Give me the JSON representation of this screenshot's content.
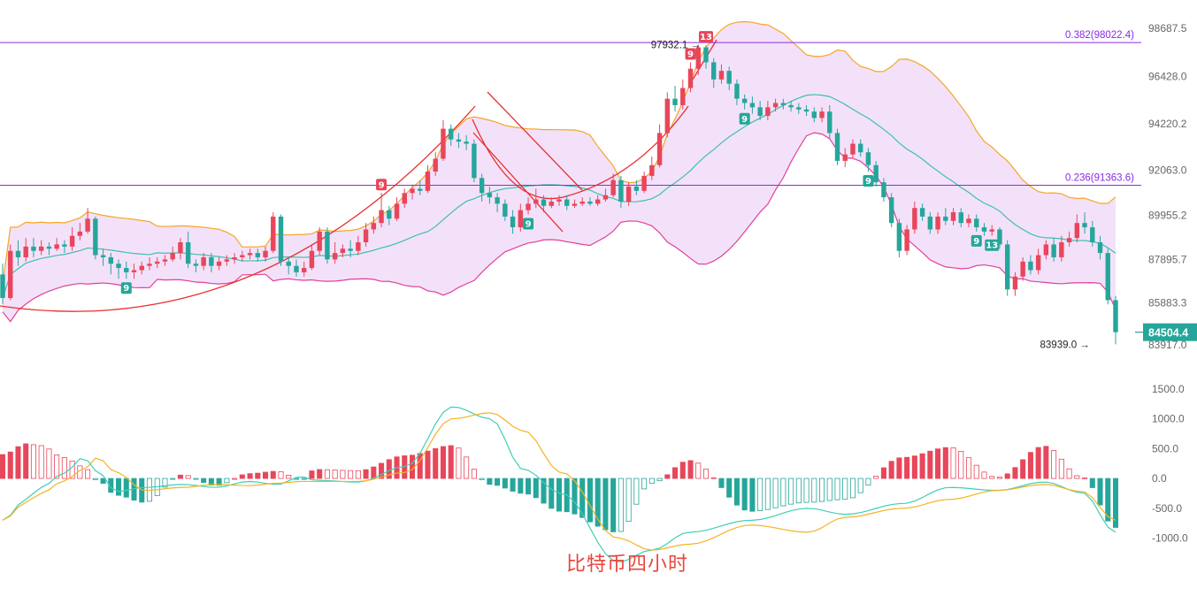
{
  "caption": "比特币四小时",
  "chart_data": [
    {
      "type": "candlestick",
      "title": "",
      "y_axis_ticks": [
        "98687.5",
        "96428.0",
        "94220.2",
        "92063.0",
        "89955.2",
        "87895.7",
        "85883.3",
        "83917.0"
      ],
      "ylim": [
        83500,
        99100
      ],
      "fib_levels": [
        {
          "label": "0.382(98022.4)",
          "value": 98022.4,
          "color": "#8a2be2"
        },
        {
          "label": "0.236(91363.6)",
          "value": 91363.6,
          "color": "#8a2be2"
        }
      ],
      "last_price": "84504.4",
      "last_price_value": 84504.4,
      "high_mark": {
        "label": "97932.1 →",
        "value": 97932.1,
        "index": 91
      },
      "low_mark": {
        "label": "83939.0 →",
        "value": 83939.0,
        "index": 141
      },
      "indicators": [
        "bollinger_bands",
        "moving_average",
        "td_sequential"
      ],
      "td_counts": [
        {
          "label": "9",
          "index": 16,
          "position": "below",
          "color": "#26a69a"
        },
        {
          "label": "9",
          "index": 49,
          "position": "above",
          "color": "#e8465a"
        },
        {
          "label": "9",
          "index": 68,
          "position": "below",
          "color": "#26a69a"
        },
        {
          "label": "9",
          "index": 89,
          "position": "above",
          "color": "#e8465a"
        },
        {
          "label": "13",
          "index": 91,
          "position": "above",
          "color": "#e8465a"
        },
        {
          "label": "9",
          "index": 96,
          "position": "below",
          "color": "#26a69a"
        },
        {
          "label": "9",
          "index": 112,
          "position": "below",
          "color": "#26a69a"
        },
        {
          "label": "9",
          "index": 126,
          "position": "below",
          "color": "#26a69a"
        },
        {
          "label": "13",
          "index": 128,
          "position": "below",
          "color": "#26a69a"
        }
      ],
      "candles": [
        [
          87200,
          86100,
          87700,
          85800
        ],
        [
          86100,
          88300,
          88600,
          86000
        ],
        [
          88300,
          88000,
          88800,
          87600
        ],
        [
          88000,
          88500,
          88900,
          87800
        ],
        [
          88500,
          88300,
          88900,
          88000
        ],
        [
          88300,
          88500,
          88800,
          88100
        ],
        [
          88500,
          88400,
          88700,
          88100
        ],
        [
          88400,
          88600,
          88900,
          88300
        ],
        [
          88600,
          88500,
          88800,
          88200
        ],
        [
          88500,
          89000,
          89400,
          88300
        ],
        [
          89000,
          89200,
          89600,
          88800
        ],
        [
          89200,
          89800,
          90300,
          89100
        ],
        [
          89800,
          88100,
          89900,
          87900
        ],
        [
          88100,
          88000,
          88400,
          87600
        ],
        [
          88000,
          87700,
          88200,
          87200
        ],
        [
          87700,
          87500,
          87900,
          87000
        ],
        [
          87500,
          87300,
          87800,
          87000
        ],
        [
          87300,
          87400,
          87700,
          87000
        ],
        [
          87400,
          87600,
          87800,
          87200
        ],
        [
          87600,
          87700,
          88000,
          87400
        ],
        [
          87700,
          87800,
          88000,
          87500
        ],
        [
          87800,
          87900,
          88100,
          87600
        ],
        [
          87900,
          88200,
          88500,
          87800
        ],
        [
          88200,
          88700,
          88900,
          87900
        ],
        [
          88700,
          87700,
          89200,
          87500
        ],
        [
          87700,
          87600,
          87900,
          87300
        ],
        [
          87600,
          88000,
          88200,
          87400
        ],
        [
          88000,
          87600,
          88200,
          87300
        ],
        [
          87600,
          87800,
          88000,
          87400
        ],
        [
          87800,
          87900,
          88100,
          87600
        ],
        [
          87900,
          88000,
          88200,
          87700
        ],
        [
          88000,
          88100,
          88300,
          87800
        ],
        [
          88100,
          88200,
          88400,
          87900
        ],
        [
          88200,
          88000,
          88400,
          87800
        ],
        [
          88000,
          88300,
          88500,
          87800
        ],
        [
          88300,
          89900,
          90100,
          88200
        ],
        [
          89900,
          87800,
          90000,
          87600
        ],
        [
          87800,
          87600,
          88000,
          87200
        ],
        [
          87600,
          87300,
          87900,
          87100
        ],
        [
          87300,
          87500,
          87800,
          87100
        ],
        [
          87500,
          88300,
          88600,
          87400
        ],
        [
          88300,
          89200,
          89400,
          88100
        ],
        [
          89200,
          87900,
          89400,
          87700
        ],
        [
          87900,
          88200,
          88700,
          87700
        ],
        [
          88200,
          88400,
          88600,
          88000
        ],
        [
          88400,
          88300,
          88800,
          88000
        ],
        [
          88300,
          88700,
          89000,
          88100
        ],
        [
          88700,
          89300,
          89600,
          88500
        ],
        [
          89300,
          89600,
          89900,
          89100
        ],
        [
          89600,
          90200,
          91000,
          89400
        ],
        [
          90200,
          89800,
          90400,
          89500
        ],
        [
          89800,
          90500,
          90800,
          89700
        ],
        [
          90500,
          91000,
          91200,
          90300
        ],
        [
          91000,
          91200,
          91400,
          90700
        ],
        [
          91200,
          91100,
          91600,
          90900
        ],
        [
          91100,
          92000,
          92300,
          91000
        ],
        [
          92000,
          92600,
          92900,
          91800
        ],
        [
          92600,
          94000,
          94400,
          92500
        ],
        [
          94000,
          93500,
          94200,
          93200
        ],
        [
          93500,
          93400,
          93800,
          93100
        ],
        [
          93400,
          93300,
          93700,
          93000
        ],
        [
          93300,
          91700,
          93500,
          91500
        ],
        [
          91700,
          91000,
          91900,
          90600
        ],
        [
          91000,
          90800,
          91300,
          90500
        ],
        [
          90800,
          90500,
          91000,
          90100
        ],
        [
          90500,
          89900,
          90700,
          89700
        ],
        [
          89900,
          89400,
          90200,
          89100
        ],
        [
          89400,
          90200,
          90500,
          89200
        ],
        [
          90200,
          90500,
          90800,
          90000
        ],
        [
          90500,
          90700,
          91200,
          90300
        ],
        [
          90700,
          90400,
          90900,
          90100
        ],
        [
          90400,
          90600,
          90800,
          90300
        ],
        [
          90600,
          90700,
          90900,
          90400
        ],
        [
          90700,
          90400,
          90900,
          90200
        ],
        [
          90400,
          90500,
          90700,
          90300
        ],
        [
          90500,
          90600,
          90800,
          90400
        ],
        [
          90600,
          90500,
          90800,
          90400
        ],
        [
          90500,
          90700,
          90900,
          90400
        ],
        [
          90700,
          90900,
          91200,
          90600
        ],
        [
          90900,
          91600,
          91900,
          90800
        ],
        [
          91600,
          90600,
          91800,
          90300
        ],
        [
          90600,
          91300,
          91500,
          90400
        ],
        [
          91300,
          91100,
          91600,
          90900
        ],
        [
          91100,
          91800,
          92000,
          91000
        ],
        [
          91800,
          92300,
          92700,
          91600
        ],
        [
          92300,
          93800,
          94200,
          92200
        ],
        [
          93800,
          95400,
          95700,
          93600
        ],
        [
          95400,
          95100,
          96000,
          94800
        ],
        [
          95100,
          95900,
          96300,
          94900
        ],
        [
          95900,
          96800,
          97100,
          95700
        ],
        [
          96800,
          97800,
          97932,
          96500
        ],
        [
          97800,
          97100,
          97900,
          96800
        ],
        [
          97100,
          96300,
          97300,
          95900
        ],
        [
          96300,
          96700,
          97000,
          96100
        ],
        [
          96700,
          96100,
          96900,
          95800
        ],
        [
          96100,
          95400,
          96300,
          95100
        ],
        [
          95400,
          95200,
          95600,
          94900
        ],
        [
          95200,
          95000,
          95500,
          94700
        ],
        [
          95000,
          94600,
          95300,
          94400
        ],
        [
          94600,
          95000,
          95300,
          94400
        ],
        [
          95000,
          95200,
          95400,
          94800
        ],
        [
          95200,
          95100,
          95400,
          94900
        ],
        [
          95100,
          95000,
          95300,
          94800
        ],
        [
          95000,
          94900,
          95200,
          94700
        ],
        [
          94900,
          94800,
          95100,
          94600
        ],
        [
          94800,
          94500,
          95000,
          94300
        ],
        [
          94500,
          94800,
          95000,
          94300
        ],
        [
          94800,
          93800,
          95100,
          93500
        ],
        [
          93800,
          92500,
          94000,
          92300
        ],
        [
          92500,
          92800,
          93100,
          92200
        ],
        [
          92800,
          93300,
          93500,
          92600
        ],
        [
          93300,
          92900,
          93500,
          92700
        ],
        [
          92900,
          92300,
          93100,
          92000
        ],
        [
          92300,
          91500,
          92500,
          91300
        ],
        [
          91500,
          90800,
          91700,
          90600
        ],
        [
          90800,
          89600,
          91000,
          89400
        ],
        [
          89600,
          88300,
          89800,
          88000
        ],
        [
          88300,
          89300,
          89500,
          88100
        ],
        [
          89300,
          90300,
          90600,
          89100
        ],
        [
          90300,
          89900,
          90500,
          89700
        ],
        [
          89900,
          89300,
          90100,
          89100
        ],
        [
          89300,
          89900,
          90100,
          89100
        ],
        [
          89900,
          89700,
          90300,
          89500
        ],
        [
          89700,
          90100,
          90300,
          89500
        ],
        [
          90100,
          89600,
          90300,
          89400
        ],
        [
          89600,
          89800,
          90000,
          89400
        ],
        [
          89800,
          89400,
          90000,
          89200
        ],
        [
          89400,
          89200,
          89600,
          89000
        ],
        [
          89200,
          89300,
          89500,
          89000
        ],
        [
          89300,
          88600,
          89400,
          88400
        ],
        [
          88600,
          86500,
          88800,
          86200
        ],
        [
          86500,
          87100,
          87300,
          86200
        ],
        [
          87100,
          87800,
          88000,
          86900
        ],
        [
          87800,
          87400,
          88100,
          87200
        ],
        [
          87400,
          88100,
          88400,
          87200
        ],
        [
          88100,
          88600,
          88800,
          87900
        ],
        [
          88600,
          88000,
          88900,
          87800
        ],
        [
          88000,
          88700,
          89000,
          87800
        ],
        [
          88700,
          88900,
          89200,
          88500
        ],
        [
          88900,
          89600,
          90000,
          88700
        ],
        [
          89600,
          89400,
          90100,
          89100
        ],
        [
          89400,
          88700,
          89700,
          88500
        ],
        [
          88700,
          88200,
          89000,
          87900
        ],
        [
          88200,
          86000,
          88400,
          85800
        ],
        [
          86000,
          84504,
          86200,
          83939
        ]
      ],
      "macd": {
        "y_axis_ticks": [
          "1500.0",
          "1000.0",
          "500.0",
          "0.0",
          "-500.0",
          "-1000.0"
        ],
        "ylim": [
          -1420,
          1600
        ],
        "anchors": [
          [
            0,
            -700,
            -700,
            400
          ],
          [
            5,
            -350,
            -400,
            580
          ],
          [
            8,
            -150,
            -250,
            550
          ],
          [
            13,
            90,
            -40,
            350
          ],
          [
            17,
            350,
            150,
            200
          ],
          [
            20,
            120,
            350,
            -30
          ],
          [
            24,
            -220,
            100,
            -280
          ],
          [
            30,
            -150,
            -200,
            -400
          ],
          [
            38,
            -100,
            -150,
            60
          ],
          [
            45,
            -150,
            -100,
            -120
          ],
          [
            52,
            -50,
            -120,
            80
          ],
          [
            58,
            -100,
            -80,
            120
          ],
          [
            63,
            30,
            -50,
            -20
          ],
          [
            66,
            -30,
            -50,
            150
          ],
          [
            75,
            -60,
            -50,
            130
          ],
          [
            85,
            200,
            100,
            380
          ],
          [
            95,
            1200,
            1000,
            550
          ],
          [
            103,
            1000,
            1100,
            -100
          ],
          [
            110,
            150,
            800,
            -250
          ],
          [
            118,
            -250,
            100,
            -550
          ],
          [
            130,
            -1400,
            -1000,
            -900
          ],
          [
            137,
            -1200,
            -1200,
            -80
          ],
          [
            145,
            -900,
            -1100,
            300
          ],
          [
            158,
            -700,
            -780,
            -550
          ],
          [
            170,
            -500,
            -900,
            -400
          ],
          [
            178,
            -600,
            -650,
            -350
          ],
          [
            190,
            -420,
            -500,
            350
          ],
          [
            200,
            -150,
            -350,
            520
          ],
          [
            210,
            -200,
            -200,
            20
          ],
          [
            220,
            -60,
            -100,
            540
          ],
          [
            228,
            -240,
            -220,
            20
          ],
          [
            235,
            -900,
            -700,
            -820
          ]
        ]
      }
    }
  ]
}
